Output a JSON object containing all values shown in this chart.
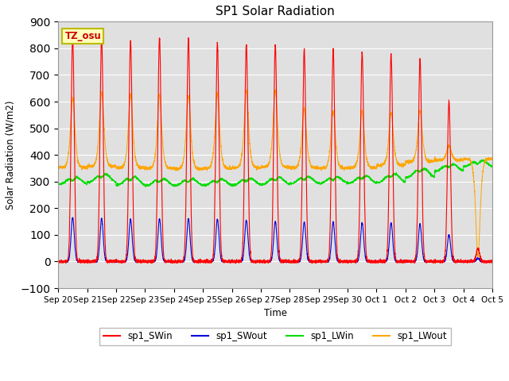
{
  "title": "SP1 Solar Radiation",
  "ylabel": "Solar Radiation (W/m2)",
  "xlabel": "Time",
  "ylim": [
    -100,
    900
  ],
  "yticks": [
    -100,
    0,
    100,
    200,
    300,
    400,
    500,
    600,
    700,
    800,
    900
  ],
  "tz_label": "TZ_osu",
  "bg_color": "#e0e0e0",
  "fig_bg": "#ffffff",
  "colors": {
    "SWin": "#ff0000",
    "SWout": "#0000dd",
    "LWin": "#00dd00",
    "LWout": "#ffa500"
  },
  "legend": [
    "sp1_SWin",
    "sp1_SWout",
    "sp1_LWin",
    "sp1_LWout"
  ],
  "x_tick_labels": [
    "Sep 20",
    "Sep 21",
    "Sep 22",
    "Sep 23",
    "Sep 24",
    "Sep 25",
    "Sep 26",
    "Sep 27",
    "Sep 28",
    "Sep 29",
    "Sep 30",
    "Oct 1",
    "Oct 2",
    "Oct 3",
    "Oct 4",
    "Oct 5"
  ],
  "n_days": 15,
  "points_per_day": 288,
  "SWin_peaks": [
    845,
    840,
    830,
    840,
    840,
    820,
    815,
    815,
    795,
    800,
    785,
    780,
    760,
    600,
    50
  ],
  "SWout_peaks": [
    165,
    162,
    158,
    160,
    160,
    158,
    155,
    150,
    148,
    148,
    145,
    145,
    140,
    100,
    12
  ],
  "LWin_base": [
    305,
    315,
    305,
    300,
    300,
    300,
    302,
    305,
    308,
    308,
    310,
    315,
    335,
    355,
    370
  ],
  "LWin_amp": [
    30,
    35,
    35,
    30,
    30,
    28,
    30,
    32,
    30,
    28,
    32,
    38,
    38,
    30,
    25
  ],
  "LWout_base": [
    352,
    358,
    352,
    350,
    348,
    350,
    352,
    355,
    352,
    350,
    352,
    362,
    375,
    380,
    385
  ],
  "LWout_peaks": [
    590,
    610,
    600,
    600,
    598,
    605,
    615,
    615,
    555,
    545,
    545,
    540,
    548,
    430,
    50
  ]
}
